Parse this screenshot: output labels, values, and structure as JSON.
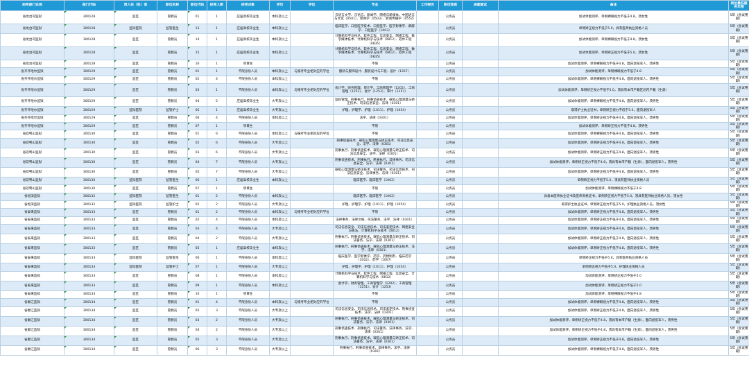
{
  "headers": [
    "招考部门名称",
    "部门代码",
    "用人处（科）室",
    "职位名称",
    "职位代码",
    "招考人数",
    "招考对象",
    "学历",
    "学位",
    "专业",
    "工作经历",
    "职位性质",
    "进面面试",
    "备注",
    "岗位最低服务年限"
  ],
  "rows": [
    [
      "省龙台司监狱",
      "300128",
      "监区",
      "管教员",
      "01",
      "1",
      "应届高校毕业生",
      "本科及以上",
      "",
      "汉语言文学、汉语言、新闻学、网络与新媒体、中国语言与文化（0501）、新闻学（0503）、新闻传播学（0552）",
      "",
      "公务员",
      "",
      "加试体能测评，单侧裸眼视力不低于4.8，须女性",
      "5年（含试用期）"
    ],
    [
      "省龙台司监狱",
      "300128",
      "监狱医院",
      "监管医生",
      "13",
      "1",
      "应届高校毕业生",
      "本科及以上",
      "",
      "临床医学、口腔医学技术、口腔医学、医学影像学、麻醉学、口腔医学（1003）",
      "",
      "公务员",
      "",
      "单侧矫正视力不低于5.0，具有医师执业资格人员",
      "5年（含试用期）"
    ],
    [
      "省龙台司监狱",
      "300128",
      "监区",
      "管教员",
      "14",
      "1",
      "应届高校毕业生",
      "本科及以上",
      "",
      "计算机科学与技术、软件工程、信息安全、网络工程、数字媒体技术、计算机科学与技术（0812）、软件工程（0835）",
      "",
      "公务员",
      "",
      "加试体能测评，单侧裸眼视力不低于4.8，须女性",
      "5年（含试用期）"
    ],
    [
      "省龙台司监狱",
      "300128",
      "监区",
      "管教员",
      "15",
      "1",
      "应届高校毕业生",
      "本科及以上",
      "",
      "计算机科学与技术、软件工程、信息安全、网络工程、数字媒体技术、计算机科学与技术（0812）、软件工程（0835）",
      "",
      "公务员",
      "",
      "加试体能测评，单侧矫正视力不低于5.0，须女性",
      "5年（含试用期）"
    ],
    [
      "省龙台司监狱",
      "300128",
      "监区",
      "管教员",
      "16",
      "1",
      "项目生",
      "",
      "",
      "不限",
      "",
      "公务员",
      "",
      "加试体能测评，单侧裸眼视力不低于4.8，面向退役军人，须男性",
      "5年（含试用期）"
    ],
    [
      "省齐齐哈尔监狱",
      "300129",
      "监区",
      "管教员",
      "01",
      "1",
      "不限身份人员",
      "本科及以上",
      "与报考专业相对应的学位",
      "服装与服饰设计、服装设计与工程、设计（1357）",
      "",
      "公务员",
      "",
      "加试体能测评，单侧裸眼视力不低于4.8",
      "5年（含试用期）"
    ],
    [
      "省齐齐哈尔监狱",
      "300129",
      "监区",
      "管教员",
      "02",
      "4",
      "不限身份人员",
      "本科及以上",
      "",
      "不限",
      "",
      "公务员",
      "",
      "加试体能测评，单侧裸眼视力不低于4.8，面向退役军人，须男性",
      "5年（含试用期）"
    ],
    [
      "省齐齐哈尔监狱",
      "300129",
      "监区",
      "管教员",
      "03",
      "1",
      "不限身份人员",
      "本科及以上",
      "与报考专业相对应的学位",
      "会计学、财务管理、审计学、工商管理学（1202）、工商管理（1251）、会计（1253）、审计（1257）",
      "",
      "公务员",
      "",
      "加试体能测评，单侧矫正视力不低于5.0，须具有本市户籍区划内户籍（生源）",
      "5年（含试用期）"
    ],
    [
      "省齐齐哈尔监狱",
      "300129",
      "监区",
      "管教员",
      "04",
      "5",
      "应届高校毕业生",
      "大专及以上",
      "",
      "监狱管理、刑事执行、刑事侦查技术、罪犯心理测量与矫正技术、司法信息安全、法律（0301）",
      "",
      "公务员",
      "",
      "加试体能测评，单侧裸眼视力不低于4.8，面向退役军人，须男性",
      "5年（含试用期）"
    ],
    [
      "省齐齐哈尔监狱",
      "300129",
      "监狱医院",
      "监管护士",
      "05",
      "1",
      "应届高校毕业生",
      "大专及以上",
      "",
      "护理、护理学、护理（1011）、护理（1054）",
      "",
      "公务员",
      "",
      "取得护士执业证书，单侧矫正视力不低于5.0，面向退役军人",
      "5年（含试用期）"
    ],
    [
      "省齐齐哈尔监狱",
      "300129",
      "监区",
      "管教员",
      "06",
      "4",
      "不限身份人员",
      "本科及以上",
      "",
      "法学、法律（0301）",
      "",
      "公务员",
      "",
      "加试体能测评，单侧矫正视力不低于4.8，面向退役军人，须男性",
      "5年（含试用期）"
    ],
    [
      "省齐齐哈尔监狱",
      "300129",
      "监区",
      "管教员",
      "07",
      "1",
      "项目生",
      "",
      "",
      "不限",
      "",
      "公务员",
      "",
      "加试体能测评，单侧矫正视力不低于4.8，须男性",
      "5年（含试用期）"
    ],
    [
      "省双鸭山监狱",
      "300130",
      "监区",
      "管教员",
      "01",
      "6",
      "不限身份人员",
      "本科及以上",
      "与报考专业相对应的学位",
      "不限",
      "",
      "公务员",
      "",
      "加试体能测评，单侧裸眼视力不低于4.8，面向退役军人，须男性",
      "5年（含试用期）"
    ],
    [
      "省双鸭山监狱",
      "300130",
      "监区",
      "管教员",
      "02",
      "6",
      "不限身份人员",
      "大专及以上",
      "",
      "刑事侦查技术、罪犯心理测量与矫正技术、司法信息安全、法学、法律（0301）",
      "",
      "公务员",
      "",
      "加试体能测评，单侧矫正视力不低于4.8，面向退役军人，须男性",
      "5年（含试用期）"
    ],
    [
      "省双鸭山监狱",
      "300130",
      "监区",
      "管教员",
      "03",
      "6",
      "不限身份人员",
      "大专及以上",
      "",
      "刑事执行、刑事侦查技术、罪犯心理测量与矫正技术、司法信息安全、法学、法律（0301）",
      "",
      "公务员",
      "",
      "加试体能测评，单侧矫正视力不低于4.8，面向退役军人，须男性",
      "5年（含试用期）"
    ],
    [
      "省双鸭山监狱",
      "300130",
      "监区",
      "管教员",
      "04",
      "7",
      "不限身份人员",
      "大专及以上",
      "",
      "刑事侦查技术、刑事执行、民事执行、法律事务、司法信息安全、法学、法律（0301）",
      "",
      "公务员",
      "",
      "加试体能测评，单侧矫正视力不低于4.8，须具有本市户籍（生源），面向退役军人，须男性",
      "5年（含试用期）"
    ],
    [
      "省双鸭山监狱",
      "300130",
      "监区",
      "管教员",
      "05",
      "7",
      "不限身份人员",
      "大专及以上",
      "",
      "罪犯心理测量与矫正技术、司法警务、司法信息技术、司法信息安全、法律事务、法律（0301）",
      "",
      "公务员",
      "",
      "加试体能测评，单侧矫正视力不低于4.8，面向退役军人，须男性",
      "5年（含试用期）"
    ],
    [
      "省双鸭山监狱",
      "300130",
      "监狱医院",
      "监管医生",
      "06",
      "1",
      "应届高校毕业生",
      "本科及以上",
      "",
      "临床医学、临床医学（1002）",
      "",
      "公务员",
      "",
      "单侧矫正视力不低于5.0，须具有医师执业资格人员",
      "5年（含试用期）"
    ],
    [
      "省双鸭山监狱",
      "300130",
      "监区",
      "管教员",
      "07",
      "1",
      "项目生",
      "",
      "",
      "不限",
      "",
      "公务员",
      "",
      "加试体能测评，单侧裸眼视力不低于4.8",
      "5年（含试用期）"
    ],
    [
      "省松滨监狱",
      "300132",
      "监狱医院",
      "监管医生",
      "01",
      "2",
      "不限身份人员",
      "本科及以上",
      "",
      "临床医学、临床医学（1002）",
      "",
      "公务员",
      "",
      "具备本医师执业证书及医师资格证书，单侧矫正视力不低于5.0，须具有医师执业资格人员，须女性",
      "5年（含试用期）"
    ],
    [
      "省松滨监狱",
      "300132",
      "监狱医院",
      "监管护士",
      "02",
      "2",
      "不限身份人员",
      "大专及以上",
      "",
      "护理、护理学、护理（1011）、护理（1054）",
      "",
      "公务员",
      "",
      "取得护士执业证书，单侧矫正视力不低于5.0，护理执业资格人员，须女性",
      "5年（含试用期）"
    ],
    [
      "省泰来监狱",
      "300133",
      "监区",
      "管教员",
      "01",
      "2",
      "不限身份人员",
      "本科及以上",
      "与报考专业相对应的学位",
      "不限",
      "",
      "公务员",
      "",
      "加试体能测评，单侧矫正视力不低于4.8，面向退役军人，须男性",
      "5年（含试用期）"
    ],
    [
      "省泰来监狱",
      "300133",
      "监区",
      "管教员",
      "02",
      "4",
      "不限身份人员",
      "本科及以上",
      "",
      "法律事务、法律文秘、司法警务、法学、法律（0301）",
      "",
      "公务员",
      "",
      "加试体能测评，单侧矫正视力不低于4.8，面向退役军人，须男性",
      "5年（含试用期）"
    ],
    [
      "省泰来监狱",
      "300133",
      "监区",
      "管教员",
      "03",
      "4",
      "不限身份人员",
      "大专及以上",
      "",
      "司法信息安全、司法信息技术、司法鉴定技术、网络安全与执法、计算机科学与技术（0812）",
      "",
      "公务员",
      "",
      "加试体能测评，单侧矫正视力不低于4.8，面向退役军人，须男性",
      "5年（含试用期）"
    ],
    [
      "省泰来监狱",
      "300133",
      "监区",
      "管教员",
      "04",
      "2",
      "不限身份人员",
      "大专及以上",
      "",
      "刑事执行、刑事侦查技术、罪犯心理测量与矫正技术、司法警务、法学、法律（0301）",
      "",
      "公务员",
      "",
      "加试体能测评，单侧矫正视力不低于4.8，面向退役军人，须男性",
      "5年（含试用期）"
    ],
    [
      "省泰来监狱",
      "300133",
      "监区",
      "管教员",
      "05",
      "1",
      "应届高校毕业生",
      "本科及以上",
      "",
      "刑事执行、刑事侦查技术、罪犯心理测量与矫正技术、法学、法律（0301）",
      "",
      "公务员",
      "",
      "加试体能测评，单侧矫正视力不低于4.8，面向退役军人，须男性",
      "5年（含试用期）"
    ],
    [
      "省泰来监狱",
      "300133",
      "监狱医院",
      "监管医生",
      "06",
      "1",
      "不限身份人员",
      "本科及以上",
      "",
      "临床医学、医学影像学、药学、药物制剂、临床药学（1002）、药学（1007）",
      "",
      "公务员",
      "",
      "单侧矫正视力不低于5.0，具有医师执业资格人员",
      "5年（含试用期）"
    ],
    [
      "省泰来监狱",
      "300133",
      "监狱医院",
      "监管护士",
      "07",
      "1",
      "不限身份人员",
      "大专及以上",
      "",
      "护理、护理学、护理（1011）、护理（1054）",
      "",
      "公务员",
      "",
      "单侧矫正视力不低于5.0，护理执业资格人员",
      "5年（含试用期）"
    ],
    [
      "省泰来监狱",
      "300133",
      "监区",
      "管教员",
      "08",
      "1",
      "不限身份人员",
      "本科及以上",
      "",
      "计算机科学与技术、软件工程、网络工程、信息安全、计算机科学与技术（0812）",
      "",
      "公务员",
      "",
      "加试体能测评，单侧矫正视力不低于5.0",
      "5年（含试用期）"
    ],
    [
      "省泰来监狱",
      "300133",
      "监区",
      "管教员",
      "09",
      "1",
      "不限身份人员",
      "本科及以上",
      "",
      "会计学、财务管理、工商管理学（1202）、工商管理（1251）、会计（1253）",
      "",
      "公务员",
      "",
      "加试体能测评，单侧矫正视力不低于5.0",
      "5年（含试用期）"
    ],
    [
      "省泰来监狱",
      "300133",
      "监区",
      "管教员",
      "10",
      "1",
      "项目生",
      "",
      "",
      "不限",
      "",
      "公务员",
      "",
      "加试体能测评，单侧裸眼视力不低于4.8",
      "5年（含试用期）"
    ],
    [
      "省嫩江监狱",
      "300134",
      "监区",
      "管教员",
      "01",
      "4",
      "不限身份人员",
      "本科及以上",
      "与报考专业相对应的学位",
      "不限",
      "",
      "公务员",
      "",
      "加试体能测评，单侧裸眼视力不低于4.8，面向退役军人，须男性",
      "5年（含试用期）"
    ],
    [
      "省嫩江监狱",
      "300134",
      "监区",
      "管教员",
      "02",
      "3",
      "不限身份人员",
      "大专及以上",
      "",
      "司法信息安全、司法信息技术、司法鉴定技术、刑事侦查技术、法学、法律（0301）",
      "",
      "公务员",
      "",
      "加试体能测评，单侧矫正视力不低于4.8，面向退役军人，须男性",
      "5年（含试用期）"
    ],
    [
      "省嫩江监狱",
      "300134",
      "监区",
      "管教员",
      "03",
      "2",
      "不限身份人员",
      "大专及以上",
      "",
      "刑事执行、刑事侦查技术、罪犯心理测量与矫正技术、司法警务、法学、法律（0301）",
      "",
      "公务员",
      "",
      "加试体能测评，单侧矫正视力不低于4.8，须具有本市户籍（生源），面向退役军人，须男性",
      "5年（含试用期）"
    ],
    [
      "省嫩江监狱",
      "300134",
      "监区",
      "管教员",
      "04",
      "2",
      "不限身份人员",
      "大专及以上",
      "",
      "刑事侦查技术、刑事执行、司法警务、法律事务、法学、法律（0301）",
      "",
      "公务员",
      "",
      "加试体能测评，单侧矫正视力不低于4.8，须具有本市户籍（生源），面向退役军人，须男性",
      "5年（含试用期）"
    ],
    [
      "省嫩江监狱",
      "300134",
      "监区",
      "管教员",
      "05",
      "3",
      "不限身份人员",
      "大专及以上",
      "",
      "刑事执行、刑事侦查技术、罪犯心理测量与矫正技术、司法警务、法学、法律（0301）",
      "",
      "公务员",
      "",
      "加试体能测评，单侧矫正视力不低于4.8，面向退役军人，须男性",
      "5年（含试用期）"
    ],
    [
      "省嫩江监狱",
      "300134",
      "监区",
      "管教员",
      "06",
      "3",
      "不限身份人员",
      "大专及以上",
      "",
      "刑事执行、刑事侦查技术、法律事务、法学、法律（0301）",
      "",
      "公务员",
      "",
      "加试体能测评，单侧裸眼视力不低于4.8，面向退役军人，须男性",
      "5年（含试用期）"
    ]
  ]
}
